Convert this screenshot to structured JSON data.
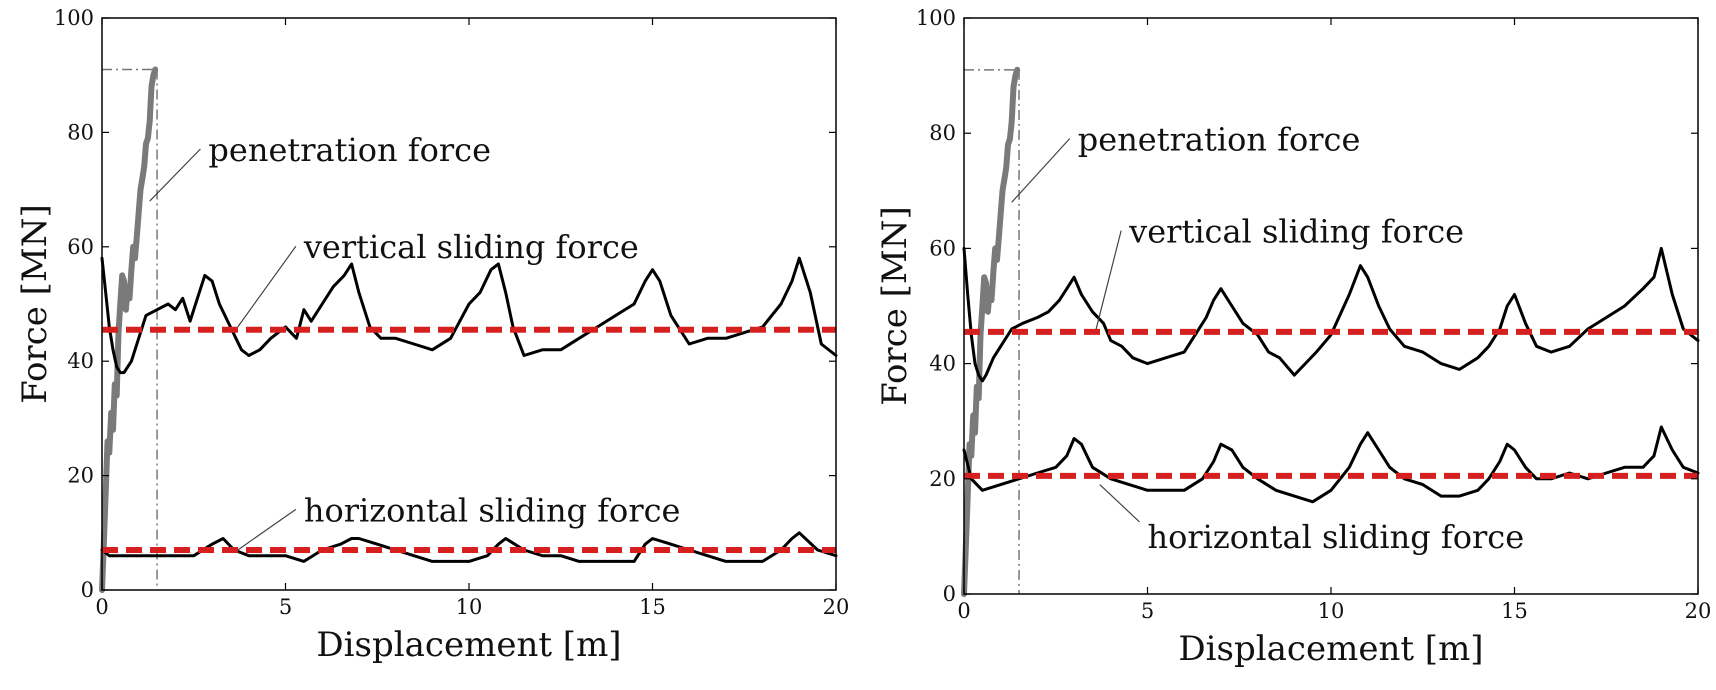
{
  "chart_data": [
    {
      "type": "line",
      "xlabel": "Displacement [m]",
      "ylabel": "Force [MN]",
      "xlim": [
        0,
        20
      ],
      "ylim": [
        0,
        100
      ],
      "xticks": [
        0,
        5,
        10,
        15,
        20
      ],
      "yticks": [
        0,
        20,
        40,
        60,
        80,
        100
      ],
      "grid": false,
      "legend": "none",
      "colors": {
        "measured": "#000000",
        "penetration": "#7a7a7a",
        "mean": "#d62020",
        "guide": "#777777"
      },
      "series": [
        {
          "role": "penetration",
          "x": [
            0,
            0.05,
            0.1,
            0.15,
            0.2,
            0.25,
            0.3,
            0.35,
            0.4,
            0.45,
            0.5,
            0.55,
            0.6,
            0.65,
            0.7,
            0.75,
            0.8,
            0.85,
            0.9,
            0.95,
            1.0,
            1.05,
            1.1,
            1.15,
            1.2,
            1.25,
            1.3,
            1.35,
            1.4,
            1.45
          ],
          "y": [
            0,
            8,
            17,
            26,
            24,
            31,
            28,
            36,
            34,
            45,
            50,
            55,
            54,
            49,
            53,
            51,
            56,
            60,
            58,
            62,
            66,
            70,
            72,
            74,
            78,
            79,
            82,
            88,
            90,
            91
          ]
        },
        {
          "role": "vertical-sliding",
          "x": [
            0,
            0.1,
            0.2,
            0.3,
            0.4,
            0.5,
            0.6,
            0.8,
            1.0,
            1.2,
            1.5,
            1.8,
            2.0,
            2.2,
            2.4,
            2.6,
            2.8,
            3.0,
            3.2,
            3.5,
            3.8,
            4.0,
            4.3,
            4.6,
            5.0,
            5.3,
            5.5,
            5.7,
            6.0,
            6.3,
            6.6,
            6.8,
            7.0,
            7.3,
            7.6,
            8.0,
            8.5,
            9.0,
            9.5,
            10.0,
            10.3,
            10.6,
            10.8,
            11.0,
            11.2,
            11.5,
            12.0,
            12.5,
            13.0,
            13.5,
            14.0,
            14.5,
            14.8,
            15.0,
            15.2,
            15.5,
            16.0,
            16.5,
            17.0,
            17.5,
            18.0,
            18.5,
            18.8,
            19.0,
            19.3,
            19.6,
            20.0
          ],
          "y": [
            58,
            52,
            46,
            42,
            39,
            38,
            38,
            40,
            44,
            48,
            49,
            50,
            49,
            51,
            47,
            51,
            55,
            54,
            50,
            46,
            42,
            41,
            42,
            44,
            46,
            44,
            49,
            47,
            50,
            53,
            55,
            57,
            52,
            46,
            44,
            44,
            43,
            42,
            44,
            50,
            52,
            56,
            57,
            52,
            46,
            41,
            42,
            42,
            44,
            46,
            48,
            50,
            54,
            56,
            54,
            48,
            43,
            44,
            44,
            45,
            46,
            50,
            54,
            58,
            52,
            43,
            41
          ]
        },
        {
          "role": "horizontal-sliding",
          "x": [
            0,
            0.2,
            0.5,
            1.0,
            1.5,
            2.0,
            2.5,
            3.0,
            3.3,
            3.6,
            4.0,
            4.5,
            5.0,
            5.5,
            6.0,
            6.5,
            6.8,
            7.0,
            7.5,
            8.0,
            8.5,
            9.0,
            9.5,
            10.0,
            10.5,
            10.8,
            11.0,
            11.5,
            12.0,
            12.5,
            13.0,
            13.5,
            14.0,
            14.5,
            14.8,
            15.0,
            15.5,
            16.0,
            16.5,
            17.0,
            17.5,
            18.0,
            18.5,
            18.8,
            19.0,
            19.5,
            20.0
          ],
          "y": [
            7,
            6,
            6,
            6,
            6,
            6,
            6,
            8,
            9,
            7,
            6,
            6,
            6,
            5,
            7,
            8,
            9,
            9,
            8,
            7,
            6,
            5,
            5,
            5,
            6,
            8,
            9,
            7,
            6,
            6,
            5,
            5,
            5,
            5,
            8,
            9,
            8,
            7,
            6,
            5,
            5,
            5,
            7,
            9,
            10,
            7,
            6
          ]
        },
        {
          "role": "mean-vertical",
          "x": [
            0,
            20
          ],
          "y": [
            45.5,
            45.5
          ]
        },
        {
          "role": "mean-horizontal",
          "x": [
            0,
            20
          ],
          "y": [
            7,
            7
          ]
        }
      ],
      "reference_lines": {
        "vertical_x": 1.5,
        "horizontal_y": 91
      },
      "annotations": [
        {
          "text": "penetration force",
          "x": 2.9,
          "y": 75,
          "point": [
            1.3,
            68
          ]
        },
        {
          "text": "vertical sliding force",
          "x": 5.5,
          "y": 58,
          "point": [
            3.7,
            46
          ]
        },
        {
          "text": "horizontal sliding force",
          "x": 5.5,
          "y": 12,
          "point": [
            3.7,
            7
          ]
        }
      ]
    },
    {
      "type": "line",
      "xlabel": "Displacement [m]",
      "ylabel": "Force [MN]",
      "xlim": [
        0,
        20
      ],
      "ylim": [
        0,
        100
      ],
      "xticks": [
        0,
        5,
        10,
        15,
        20
      ],
      "yticks": [
        0,
        20,
        40,
        60,
        80,
        100
      ],
      "grid": false,
      "legend": "none",
      "colors": {
        "measured": "#000000",
        "penetration": "#7a7a7a",
        "mean": "#d62020",
        "guide": "#777777"
      },
      "series": [
        {
          "role": "penetration",
          "x": [
            0,
            0.05,
            0.1,
            0.15,
            0.2,
            0.25,
            0.3,
            0.35,
            0.4,
            0.45,
            0.5,
            0.55,
            0.6,
            0.65,
            0.7,
            0.75,
            0.8,
            0.85,
            0.9,
            0.95,
            1.0,
            1.05,
            1.1,
            1.15,
            1.2,
            1.25,
            1.3,
            1.35,
            1.4,
            1.45
          ],
          "y": [
            0,
            8,
            17,
            26,
            24,
            31,
            28,
            36,
            34,
            45,
            50,
            55,
            54,
            49,
            53,
            51,
            56,
            60,
            58,
            62,
            66,
            70,
            72,
            74,
            78,
            79,
            82,
            88,
            90,
            91
          ]
        },
        {
          "role": "vertical-sliding",
          "x": [
            0,
            0.1,
            0.2,
            0.3,
            0.4,
            0.5,
            0.6,
            0.8,
            1.0,
            1.3,
            1.6,
            2.0,
            2.3,
            2.6,
            2.8,
            3.0,
            3.2,
            3.5,
            3.8,
            4.0,
            4.3,
            4.6,
            5.0,
            5.5,
            6.0,
            6.3,
            6.6,
            6.8,
            7.0,
            7.3,
            7.6,
            8.0,
            8.3,
            8.6,
            9.0,
            9.3,
            9.6,
            10.0,
            10.5,
            10.8,
            11.0,
            11.3,
            11.6,
            12.0,
            12.5,
            13.0,
            13.5,
            14.0,
            14.3,
            14.6,
            14.8,
            15.0,
            15.3,
            15.6,
            16.0,
            16.5,
            17.0,
            17.5,
            18.0,
            18.5,
            18.8,
            19.0,
            19.3,
            19.6,
            20.0
          ],
          "y": [
            60,
            52,
            45,
            40,
            38,
            37,
            38,
            41,
            43,
            46,
            47,
            48,
            49,
            51,
            53,
            55,
            52,
            49,
            47,
            44,
            43,
            41,
            40,
            41,
            42,
            45,
            48,
            51,
            53,
            50,
            47,
            45,
            42,
            41,
            38,
            40,
            42,
            45,
            52,
            57,
            55,
            50,
            46,
            43,
            42,
            40,
            39,
            41,
            43,
            46,
            50,
            52,
            47,
            43,
            42,
            43,
            46,
            48,
            50,
            53,
            55,
            60,
            52,
            46,
            44
          ]
        },
        {
          "role": "horizontal-sliding",
          "x": [
            0,
            0.2,
            0.5,
            1.0,
            1.5,
            2.0,
            2.5,
            2.8,
            3.0,
            3.2,
            3.5,
            4.0,
            4.5,
            5.0,
            5.5,
            6.0,
            6.5,
            6.8,
            7.0,
            7.3,
            7.6,
            8.0,
            8.5,
            9.0,
            9.5,
            10.0,
            10.5,
            10.8,
            11.0,
            11.3,
            11.6,
            12.0,
            12.5,
            13.0,
            13.5,
            14.0,
            14.3,
            14.6,
            14.8,
            15.0,
            15.3,
            15.6,
            16.0,
            16.5,
            17.0,
            17.5,
            18.0,
            18.5,
            18.8,
            19.0,
            19.3,
            19.6,
            20.0
          ],
          "y": [
            25,
            20,
            18,
            19,
            20,
            21,
            22,
            24,
            27,
            26,
            22,
            20,
            19,
            18,
            18,
            18,
            20,
            23,
            26,
            25,
            22,
            20,
            18,
            17,
            16,
            18,
            22,
            26,
            28,
            25,
            22,
            20,
            19,
            17,
            17,
            18,
            20,
            23,
            26,
            25,
            22,
            20,
            20,
            21,
            20,
            21,
            22,
            22,
            24,
            29,
            25,
            22,
            21
          ]
        },
        {
          "role": "mean-vertical",
          "x": [
            0,
            20
          ],
          "y": [
            45.5,
            45.5
          ]
        },
        {
          "role": "mean-horizontal",
          "x": [
            0,
            20
          ],
          "y": [
            20.5,
            20.5
          ]
        }
      ],
      "reference_lines": {
        "vertical_x": 1.5,
        "horizontal_y": 91
      },
      "annotations": [
        {
          "text": "penetration force",
          "x": 3.1,
          "y": 77,
          "point": [
            1.3,
            68
          ]
        },
        {
          "text": "vertical sliding force",
          "x": 4.5,
          "y": 61,
          "point": [
            3.6,
            46
          ]
        },
        {
          "text": "horizontal sliding force",
          "x": 5.0,
          "y": 8,
          "point": [
            3.7,
            19
          ]
        }
      ]
    }
  ]
}
